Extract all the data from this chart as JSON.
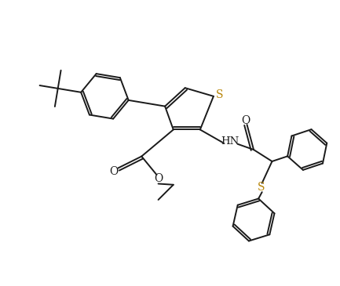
{
  "bg_color": "#ffffff",
  "line_color": "#1a1a1a",
  "s_color": "#b8860b",
  "bond_lw": 1.4,
  "figsize": [
    4.33,
    3.65
  ],
  "dpi": 100,
  "xlim": [
    0,
    10
  ],
  "ylim": [
    0,
    8.5
  ]
}
